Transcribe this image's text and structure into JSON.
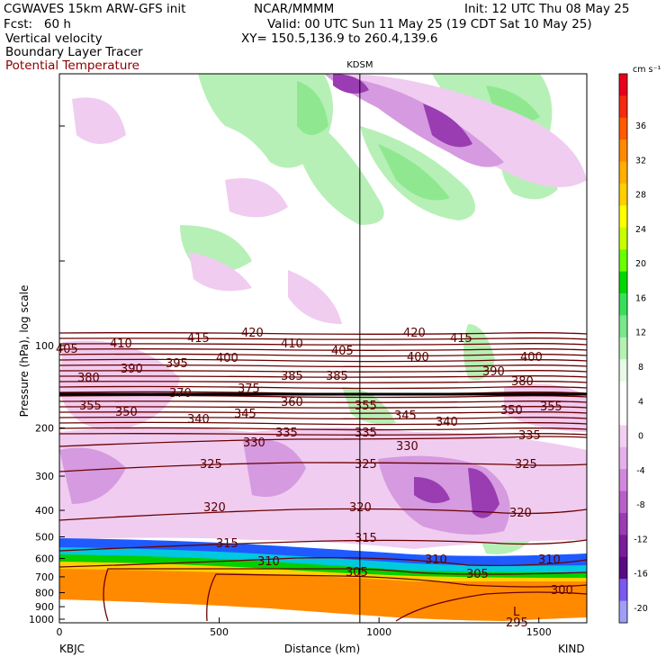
{
  "header": {
    "model": "CGWAVES 15km ARW-GFS init",
    "org": "NCAR/MMMM",
    "init": "Init: 12 UTC Thu 08 May 25",
    "fcst": "Fcst:   60 h",
    "valid": "Valid: 00 UTC Sun 11 May 25 (19 CDT Sat 10 May 25)",
    "field1": "Vertical velocity",
    "field2": "Boundary Layer Tracer",
    "field3": "Potential Temperature",
    "xy": "XY= 150.5,136.9 to 260.4,139.6",
    "station_label": "KDSM"
  },
  "colors": {
    "theta": "#6b0000",
    "field3_text": "#8b0000"
  },
  "chart_data": {
    "type": "heatmap",
    "title": "",
    "xlabel": "Distance (km)",
    "ylabel": "Pressure (hPa), log scale",
    "x_ticks": [
      "0",
      "500",
      "1000",
      "1500"
    ],
    "xlim": [
      0,
      1650
    ],
    "x_left_label": "KBJC",
    "x_right_label": "KIND",
    "y_ticks": [
      "100",
      "200",
      "300",
      "400",
      "500",
      "600",
      "700",
      "800",
      "900",
      "1000"
    ],
    "station_marker_km": 940,
    "colorbar": {
      "unit": "cm s⁻¹",
      "labels": [
        "36",
        "32",
        "28",
        "24",
        "20",
        "16",
        "12",
        "8",
        "4",
        "0",
        "-4",
        "-8",
        "-12",
        "-16",
        "-20"
      ],
      "colors": [
        "#e8001c",
        "#f52a10",
        "#ff5a00",
        "#ff8a00",
        "#ffb000",
        "#ffd000",
        "#ffff00",
        "#c8ff00",
        "#6cff00",
        "#00d800",
        "#38e05a",
        "#7ae88a",
        "#b2f2b2",
        "#e6fae6",
        "#ffffff",
        "#ffffff",
        "#f2d0f2",
        "#e4b0ea",
        "#d088dc",
        "#b860c8",
        "#9a3cb2",
        "#7a1c9a",
        "#5a0a82",
        "#7a5af0",
        "#9f9ff5"
      ]
    },
    "theta_labels": [
      "405",
      "410",
      "415",
      "420",
      "410",
      "405",
      "420",
      "415",
      "380",
      "390",
      "395",
      "400",
      "385",
      "385",
      "400",
      "390",
      "400",
      "380",
      "370",
      "375",
      "360",
      "355",
      "355",
      "350",
      "355",
      "350",
      "345",
      "340",
      "345",
      "340",
      "335",
      "335",
      "330",
      "330",
      "335",
      "325",
      "325",
      "325",
      "320",
      "320",
      "320",
      "315",
      "315",
      "310",
      "310",
      "310",
      "305",
      "305",
      "300",
      "295"
    ],
    "L_marker": "L"
  }
}
